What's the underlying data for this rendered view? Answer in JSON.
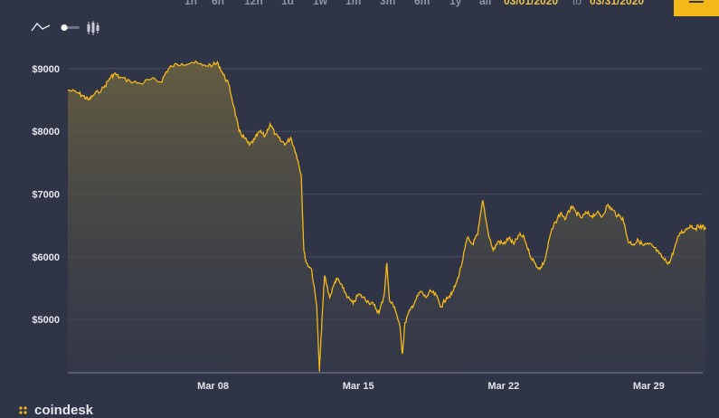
{
  "header": {
    "ranges": [
      "1h",
      "6h",
      "12h",
      "1d",
      "1w",
      "1m",
      "3m",
      "6m",
      "1y",
      "all"
    ],
    "start_date": "03/01/2020",
    "to_label": "to",
    "end_date": "03/31/2020"
  },
  "toolbar": {
    "line_icon": "line-chart-icon",
    "toggle_icon": "toggle-icon",
    "candle_icon": "candlestick-icon",
    "menu_icon": "hamburger-menu-icon"
  },
  "brand": {
    "name": "coindesk"
  },
  "colors": {
    "line": "#f4b918",
    "background": "#2f3446"
  },
  "chart_data": {
    "type": "area",
    "xlabel": "",
    "ylabel": "",
    "x_ticks": [
      {
        "label": "Mar 08",
        "day": 8
      },
      {
        "label": "Mar 15",
        "day": 15
      },
      {
        "label": "Mar 22",
        "day": 22
      },
      {
        "label": "Mar 29",
        "day": 29
      }
    ],
    "y_ticks": [
      {
        "label": "$9000",
        "value": 9000
      },
      {
        "label": "$8000",
        "value": 8000
      },
      {
        "label": "$7000",
        "value": 7000
      },
      {
        "label": "$6000",
        "value": 6000
      },
      {
        "label": "$5000",
        "value": 5000
      }
    ],
    "xlim": [
      "03/01/2020",
      "03/31/2020"
    ],
    "ylim": [
      4150,
      9300
    ],
    "grid": true,
    "series": [
      {
        "name": "",
        "points": [
          [
            "03/01/2020 00:00",
            8660
          ],
          [
            "03/01/2020 12:00",
            8610
          ],
          [
            "03/01/2020 18:00",
            8560
          ],
          [
            "03/02/2020 00:00",
            8500
          ],
          [
            "03/02/2020 06:00",
            8580
          ],
          [
            "03/02/2020 18:00",
            8700
          ],
          [
            "03/03/2020 00:00",
            8840
          ],
          [
            "03/03/2020 06:00",
            8920
          ],
          [
            "03/03/2020 12:00",
            8860
          ],
          [
            "03/04/2020 00:00",
            8800
          ],
          [
            "03/04/2020 12:00",
            8760
          ],
          [
            "03/05/2020 00:00",
            8830
          ],
          [
            "03/05/2020 12:00",
            8790
          ],
          [
            "03/05/2020 18:00",
            8950
          ],
          [
            "03/06/2020 00:00",
            9040
          ],
          [
            "03/06/2020 12:00",
            9080
          ],
          [
            "03/07/2020 00:00",
            9100
          ],
          [
            "03/07/2020 12:00",
            9050
          ],
          [
            "03/08/2020 00:00",
            9060
          ],
          [
            "03/08/2020 06:00",
            9080
          ],
          [
            "03/08/2020 12:00",
            8900
          ],
          [
            "03/08/2020 18:00",
            8750
          ],
          [
            "03/09/2020 00:00",
            8400
          ],
          [
            "03/09/2020 06:00",
            8000
          ],
          [
            "03/09/2020 12:00",
            7900
          ],
          [
            "03/09/2020 18:00",
            7780
          ],
          [
            "03/10/2020 00:00",
            7870
          ],
          [
            "03/10/2020 06:00",
            8000
          ],
          [
            "03/10/2020 12:00",
            7920
          ],
          [
            "03/10/2020 18:00",
            8120
          ],
          [
            "03/11/2020 00:00",
            7950
          ],
          [
            "03/11/2020 06:00",
            7850
          ],
          [
            "03/11/2020 12:00",
            7800
          ],
          [
            "03/11/2020 18:00",
            7900
          ],
          [
            "03/12/2020 00:00",
            7650
          ],
          [
            "03/12/2020 06:00",
            7300
          ],
          [
            "03/12/2020 09:00",
            6100
          ],
          [
            "03/12/2020 12:00",
            5900
          ],
          [
            "03/12/2020 18:00",
            5800
          ],
          [
            "03/13/2020 00:00",
            5200
          ],
          [
            "03/13/2020 03:00",
            4170
          ],
          [
            "03/13/2020 06:00",
            5000
          ],
          [
            "03/13/2020 09:00",
            5700
          ],
          [
            "03/13/2020 15:00",
            5350
          ],
          [
            "03/13/2020 21:00",
            5600
          ],
          [
            "03/14/2020 00:00",
            5650
          ],
          [
            "03/14/2020 06:00",
            5500
          ],
          [
            "03/14/2020 12:00",
            5350
          ],
          [
            "03/14/2020 18:00",
            5250
          ],
          [
            "03/15/2020 00:00",
            5400
          ],
          [
            "03/15/2020 06:00",
            5350
          ],
          [
            "03/15/2020 12:00",
            5280
          ],
          [
            "03/15/2020 18:00",
            5230
          ],
          [
            "03/16/2020 00:00",
            5100
          ],
          [
            "03/16/2020 06:00",
            5400
          ],
          [
            "03/16/2020 09:00",
            5900
          ],
          [
            "03/16/2020 12:00",
            5300
          ],
          [
            "03/16/2020 18:00",
            5200
          ],
          [
            "03/17/2020 00:00",
            4900
          ],
          [
            "03/17/2020 03:00",
            4450
          ],
          [
            "03/17/2020 06:00",
            4950
          ],
          [
            "03/17/2020 12:00",
            5150
          ],
          [
            "03/17/2020 18:00",
            5300
          ],
          [
            "03/18/2020 00:00",
            5450
          ],
          [
            "03/18/2020 06:00",
            5350
          ],
          [
            "03/18/2020 12:00",
            5450
          ],
          [
            "03/18/2020 18:00",
            5380
          ],
          [
            "03/19/2020 00:00",
            5200
          ],
          [
            "03/19/2020 06:00",
            5350
          ],
          [
            "03/19/2020 12:00",
            5400
          ],
          [
            "03/19/2020 18:00",
            5600
          ],
          [
            "03/20/2020 00:00",
            5900
          ],
          [
            "03/20/2020 06:00",
            6300
          ],
          [
            "03/20/2020 12:00",
            6200
          ],
          [
            "03/20/2020 18:00",
            6350
          ],
          [
            "03/21/2020 00:00",
            6900
          ],
          [
            "03/21/2020 06:00",
            6400
          ],
          [
            "03/21/2020 12:00",
            6100
          ],
          [
            "03/21/2020 18:00",
            6250
          ],
          [
            "03/22/2020 00:00",
            6200
          ],
          [
            "03/22/2020 06:00",
            6300
          ],
          [
            "03/22/2020 12:00",
            6200
          ],
          [
            "03/22/2020 18:00",
            6350
          ],
          [
            "03/23/2020 00:00",
            6300
          ],
          [
            "03/23/2020 06:00",
            6050
          ],
          [
            "03/23/2020 12:00",
            5900
          ],
          [
            "03/23/2020 18:00",
            5800
          ],
          [
            "03/24/2020 00:00",
            5950
          ],
          [
            "03/24/2020 06:00",
            6350
          ],
          [
            "03/24/2020 12:00",
            6550
          ],
          [
            "03/24/2020 18:00",
            6700
          ],
          [
            "03/25/2020 00:00",
            6600
          ],
          [
            "03/25/2020 06:00",
            6800
          ],
          [
            "03/25/2020 12:00",
            6700
          ],
          [
            "03/25/2020 18:00",
            6620
          ],
          [
            "03/26/2020 00:00",
            6700
          ],
          [
            "03/26/2020 06:00",
            6650
          ],
          [
            "03/26/2020 12:00",
            6700
          ],
          [
            "03/26/2020 18:00",
            6640
          ],
          [
            "03/27/2020 00:00",
            6820
          ],
          [
            "03/27/2020 06:00",
            6750
          ],
          [
            "03/27/2020 12:00",
            6650
          ],
          [
            "03/27/2020 18:00",
            6620
          ],
          [
            "03/28/2020 00:00",
            6250
          ],
          [
            "03/28/2020 06:00",
            6200
          ],
          [
            "03/28/2020 12:00",
            6260
          ],
          [
            "03/28/2020 18:00",
            6180
          ],
          [
            "03/29/2020 00:00",
            6200
          ],
          [
            "03/29/2020 06:00",
            6150
          ],
          [
            "03/29/2020 12:00",
            6050
          ],
          [
            "03/29/2020 18:00",
            5950
          ],
          [
            "03/30/2020 00:00",
            5900
          ],
          [
            "03/30/2020 06:00",
            6150
          ],
          [
            "03/30/2020 12:00",
            6380
          ],
          [
            "03/30/2020 18:00",
            6420
          ],
          [
            "03/31/2020 00:00",
            6500
          ],
          [
            "03/31/2020 06:00",
            6450
          ],
          [
            "03/31/2020 12:00",
            6500
          ],
          [
            "03/31/2020 18:00",
            6440
          ]
        ]
      }
    ]
  }
}
